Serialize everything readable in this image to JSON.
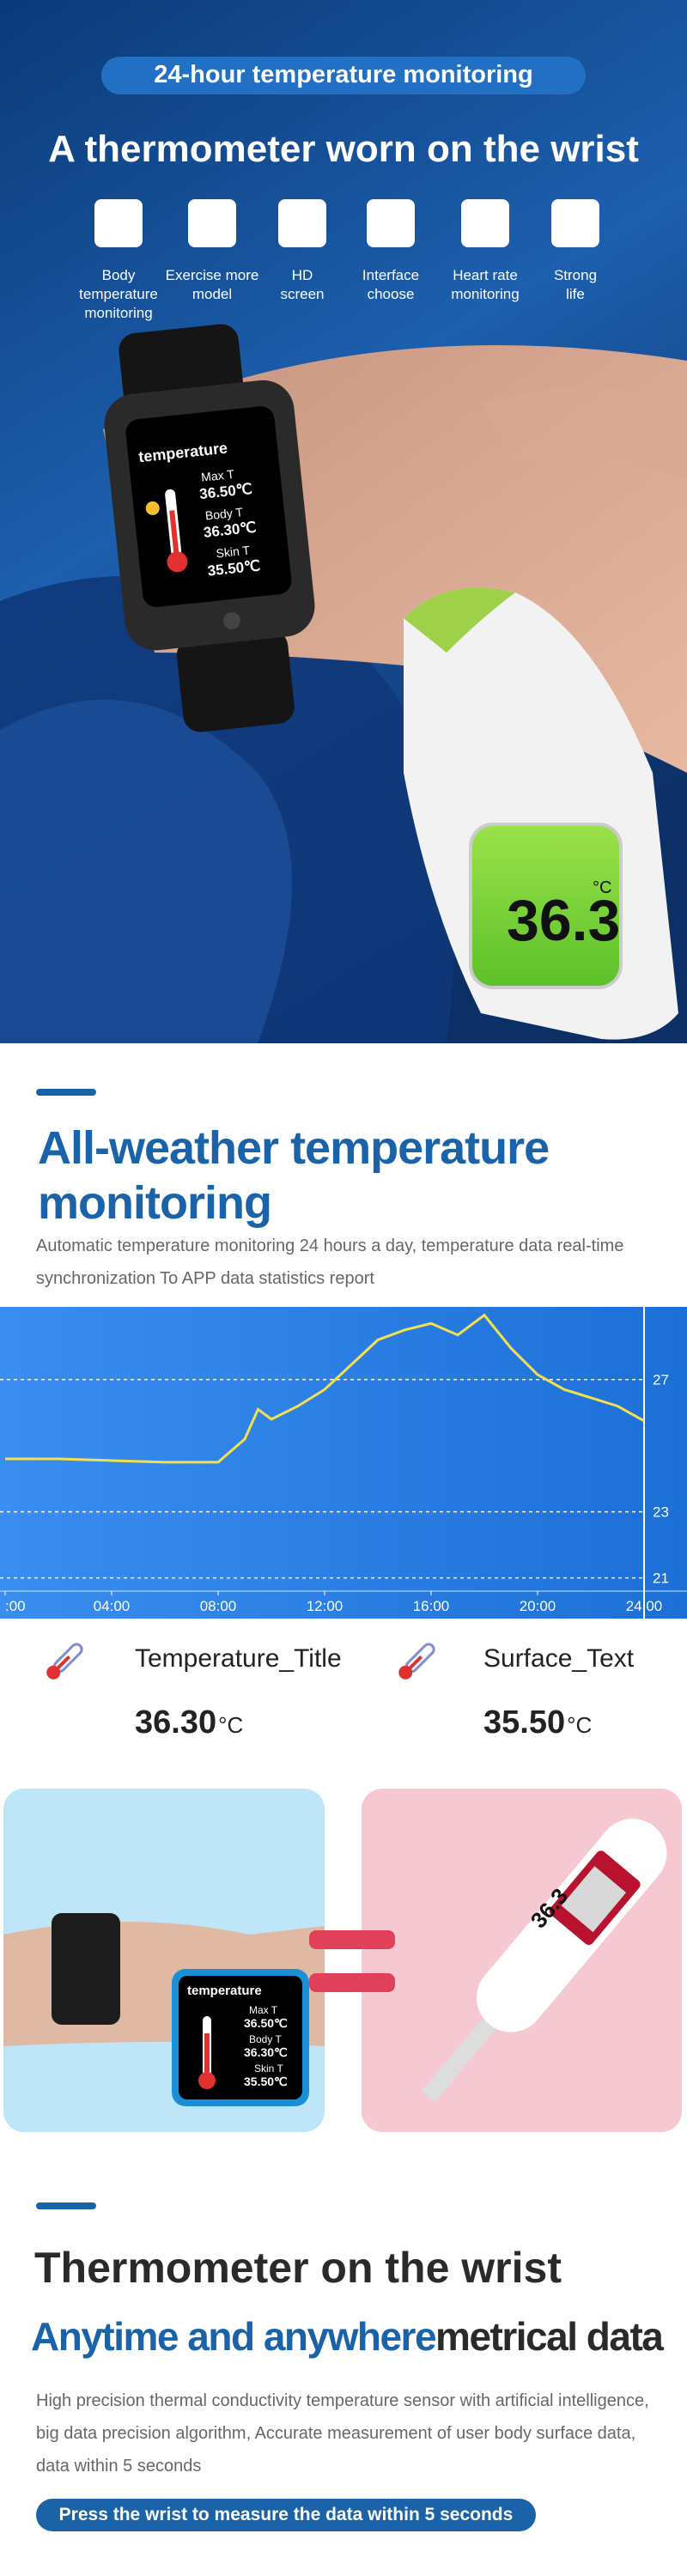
{
  "hero": {
    "badge": "24-hour temperature monitoring",
    "title": "A thermometer worn on the wrist",
    "features": [
      [
        "Body",
        "temperature",
        "monitoring"
      ],
      [
        "Exercise more",
        "model"
      ],
      [
        "HD",
        "screen"
      ],
      [
        "Interface",
        "choose"
      ],
      [
        "Heart rate",
        "monitoring"
      ],
      [
        "Strong",
        "life"
      ]
    ],
    "gun_reading": "36.3",
    "gun_unit": "°C"
  },
  "watch_screen": {
    "title": "temperature",
    "rows": [
      {
        "label": "Max T",
        "value": "36.50℃"
      },
      {
        "label": "Body T",
        "value": "36.30℃"
      },
      {
        "label": "Skin T",
        "value": "35.50℃"
      }
    ]
  },
  "section2": {
    "title": "All-weather temperature monitoring",
    "description": "Automatic temperature monitoring 24 hours a day, temperature data real-time synchronization To APP data statistics report"
  },
  "chart_data": {
    "type": "line",
    "color": "#f4e04d",
    "x": [
      0,
      2,
      4,
      6,
      8,
      9,
      9.5,
      10,
      11,
      12,
      13,
      14,
      15,
      16,
      17,
      18,
      19,
      20,
      21,
      22,
      23,
      24
    ],
    "values": [
      24.6,
      24.6,
      24.55,
      24.5,
      24.5,
      25.2,
      26.1,
      25.8,
      26.2,
      26.7,
      27.45,
      28.2,
      28.5,
      28.7,
      28.35,
      28.95,
      27.95,
      27.15,
      26.7,
      26.45,
      26.2,
      25.75
    ],
    "xlim": [
      0,
      24
    ],
    "ylim": [
      20.6,
      29.2
    ],
    "xticks": [
      {
        "value": 0,
        "label": ":00"
      },
      {
        "value": 4,
        "label": "04:00"
      },
      {
        "value": 8,
        "label": "08:00"
      },
      {
        "value": 12,
        "label": "12:00"
      },
      {
        "value": 16,
        "label": "16:00"
      },
      {
        "value": 20,
        "label": "20:00"
      },
      {
        "value": 24,
        "label": "24:00"
      }
    ],
    "yticks": [
      21,
      23,
      27
    ],
    "grid": true
  },
  "readings": [
    {
      "label": "Temperature_Title",
      "value": "36.30",
      "unit": "°C"
    },
    {
      "label": "Surface_Text",
      "value": "35.50",
      "unit": "°C"
    }
  ],
  "comparison": {
    "thermometer_reading": "36.3"
  },
  "section4": {
    "title": "Thermometer on the wrist",
    "subtitle_highlight": "Anytime and anywhere",
    "subtitle_rest": "metrical data",
    "description": "High precision thermal conductivity temperature sensor with artificial intelligence, big data precision algorithm,  Accurate measurement of user body surface data, data within 5 seconds",
    "button": "Press the wrist to measure the data within 5 seconds"
  }
}
